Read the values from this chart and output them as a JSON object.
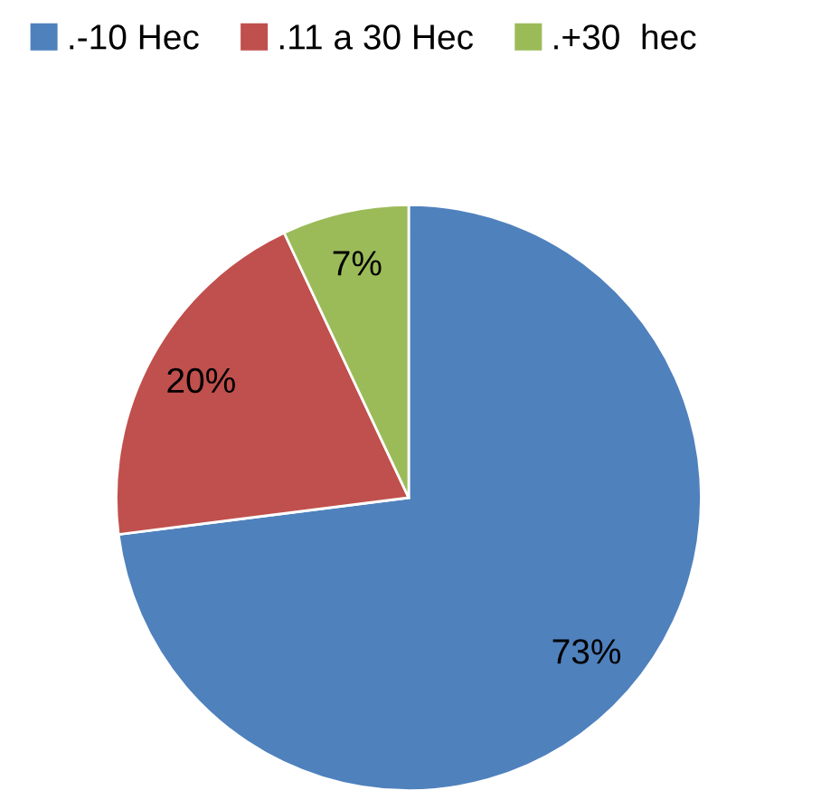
{
  "chart_data": {
    "type": "pie",
    "categories": [
      ".-10 Hec",
      ".11 a 30 Hec",
      ".+30  hec"
    ],
    "values": [
      73,
      20,
      7
    ],
    "colors": [
      "#4f81bd",
      "#c0504d",
      "#9bbb59"
    ],
    "value_labels": [
      "73%",
      "20%",
      "7%"
    ],
    "legend": "top"
  }
}
